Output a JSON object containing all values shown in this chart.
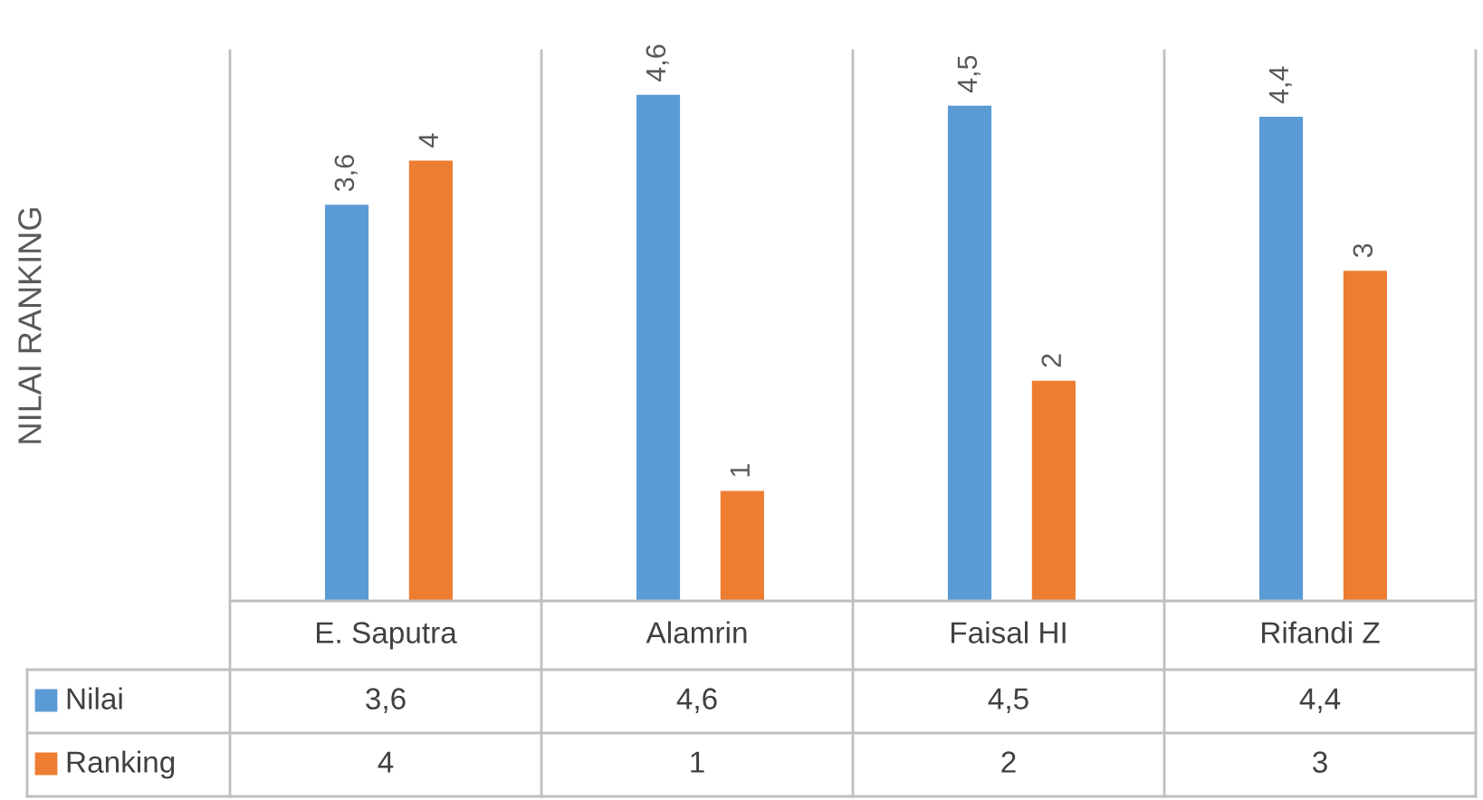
{
  "chart_data": {
    "type": "bar",
    "annotations": [
      "NILAI RANKING"
    ],
    "categories": [
      "E. Saputra",
      "Alamrin",
      "Faisal HI",
      "Rifandi Z"
    ],
    "ylim": [
      0,
      5
    ],
    "legend": "bottom",
    "series": [
      {
        "name": "Nilai",
        "color": "#5b9bd5",
        "values": [
          3.6,
          4.6,
          4.5,
          4.4
        ],
        "value_labels": [
          "3,6",
          "4,6",
          "4,5",
          "4,4"
        ]
      },
      {
        "name": "Ranking",
        "color": "#ed7d31",
        "values": [
          4,
          1,
          2,
          3
        ],
        "value_labels": [
          "4",
          "1",
          "2",
          "3"
        ]
      }
    ]
  }
}
